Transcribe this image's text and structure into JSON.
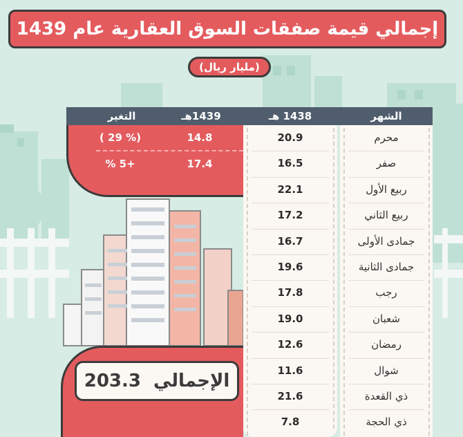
{
  "title": "إجمالي قيمة صفقات السوق العقارية عام 1439",
  "subtitle": "(مليار ريال)",
  "columns": {
    "month": "الشهر",
    "y1438": "1438 هـ",
    "y1439": "1439هـ",
    "change": "التغير"
  },
  "rows": [
    {
      "month": "محرم",
      "y1438": "20.9",
      "y1439": "14.8",
      "change": "( 29 %)"
    },
    {
      "month": "صفر",
      "y1438": "16.5",
      "y1439": "17.4",
      "change": "+5 %"
    },
    {
      "month": "ربيع الأول",
      "y1438": "22.1"
    },
    {
      "month": "ربيع الثاني",
      "y1438": "17.2"
    },
    {
      "month": "جمادى الأولى",
      "y1438": "16.7"
    },
    {
      "month": "جمادى الثانية",
      "y1438": "19.6"
    },
    {
      "month": "رجب",
      "y1438": "17.8"
    },
    {
      "month": "شعبان",
      "y1438": "19.0"
    },
    {
      "month": "رمضان",
      "y1438": "12.6"
    },
    {
      "month": "شوال",
      "y1438": "11.6"
    },
    {
      "month": "ذي القعدة",
      "y1438": "21.6"
    },
    {
      "month": "ذي الحجة",
      "y1438": "7.8"
    }
  ],
  "total": {
    "label": "الإجمالي",
    "value": "203.3"
  },
  "colors": {
    "background": "#d6ece4",
    "accent_red": "#e45b5e",
    "header_dark": "#4f5d6c",
    "column_cream": "#fbf7f2"
  }
}
